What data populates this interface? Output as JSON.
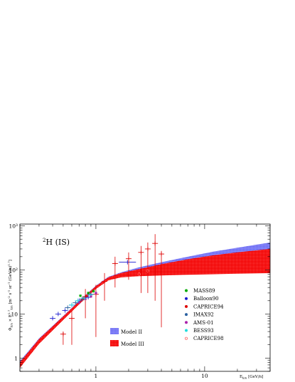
{
  "chart_data": {
    "type": "scatter",
    "annotation": {
      "text": "(IS)",
      "sup": "2",
      "element": "H"
    },
    "xlabel": "E_{k/n}  [GeV/n]",
    "ylabel": "Φ_{k/n} × E_{k/n}^{2.7} [m^{-2} s^{-1} sr^{-1} (GeV/n)^{1.7}]",
    "x_scale": "log",
    "y_scale": "log",
    "xlim": [
      0.2,
      40
    ],
    "ylim": [
      0.5,
      1100
    ],
    "x_tick_labels": [
      "1",
      "10"
    ],
    "y_tick_labels": [
      "1",
      "10",
      "10²",
      "10³"
    ],
    "models": [
      {
        "name": "Model II",
        "color": "#6b6bf5",
        "x": [
          0.2,
          0.3,
          0.5,
          0.7,
          1.0,
          1.3,
          1.7,
          2.5,
          4,
          7,
          12,
          20,
          40
        ],
        "lower": [
          0.65,
          2.2,
          7.5,
          17,
          38,
          60,
          72,
          80,
          88,
          100,
          120,
          150,
          195
        ],
        "upper": [
          0.85,
          2.8,
          9.0,
          20,
          44,
          70,
          88,
          115,
          150,
          200,
          260,
          320,
          420
        ]
      },
      {
        "name": "Model III",
        "color": "#f20000",
        "x": [
          0.2,
          0.3,
          0.5,
          0.7,
          1.0,
          1.3,
          1.7,
          2.5,
          4,
          7,
          12,
          20,
          40
        ],
        "lower": [
          0.6,
          2.1,
          7.3,
          16.5,
          37,
          58,
          68,
          72,
          75,
          78,
          80,
          82,
          85
        ],
        "upper": [
          0.8,
          2.7,
          8.8,
          19.5,
          43,
          68,
          85,
          105,
          135,
          175,
          215,
          250,
          300
        ]
      }
    ],
    "series": [
      {
        "name": "MASS89",
        "marker": "star",
        "color": "#00aa00",
        "x": [
          0.72,
          0.85,
          0.95
        ],
        "y": [
          26,
          30,
          33
        ]
      },
      {
        "name": "Balloon90",
        "marker": "cross",
        "color": "#1a1ad0",
        "x": [
          0.4,
          0.45,
          0.52,
          0.6,
          0.7,
          0.85,
          1.95
        ],
        "y": [
          8,
          10,
          12,
          16,
          20,
          24,
          150
        ]
      },
      {
        "name": "CAPRICE94",
        "marker": "cross",
        "color": "#dd0000",
        "x": [
          0.5,
          0.6,
          0.8,
          1.0,
          1.2,
          1.5,
          2.0,
          2.6,
          3.0,
          3.5,
          4.0
        ],
        "y": [
          3.5,
          8,
          25,
          28,
          55,
          140,
          180,
          250,
          300,
          400,
          230
        ],
        "yerr_low": [
          1.5,
          6,
          17,
          25,
          35,
          100,
          120,
          220,
          270,
          380,
          225
        ],
        "yerr_high": [
          0.5,
          4,
          12,
          18,
          30,
          60,
          70,
          100,
          120,
          250,
          40
        ]
      },
      {
        "name": "IMAX92",
        "marker": "cross",
        "color": "#2a60a0",
        "x": [
          0.55,
          0.65,
          0.75,
          0.9
        ],
        "y": [
          14,
          18,
          22,
          28
        ]
      },
      {
        "name": "AMS-01",
        "marker": "star",
        "color": "#aa22aa",
        "x": [
          0.7,
          0.8,
          0.9,
          1.0
        ],
        "y": [
          18,
          22,
          25,
          30
        ]
      },
      {
        "name": "BESS93",
        "marker": "cross",
        "color": "#22dddd",
        "x": [
          0.6,
          0.68,
          0.78,
          0.88
        ],
        "y": [
          16,
          20,
          23,
          27
        ]
      },
      {
        "name": "CAPRICE98",
        "marker": "circle",
        "color": "#ff6666",
        "x": [
          2.5,
          3.0
        ],
        "y": [
          80,
          95
        ]
      }
    ]
  }
}
